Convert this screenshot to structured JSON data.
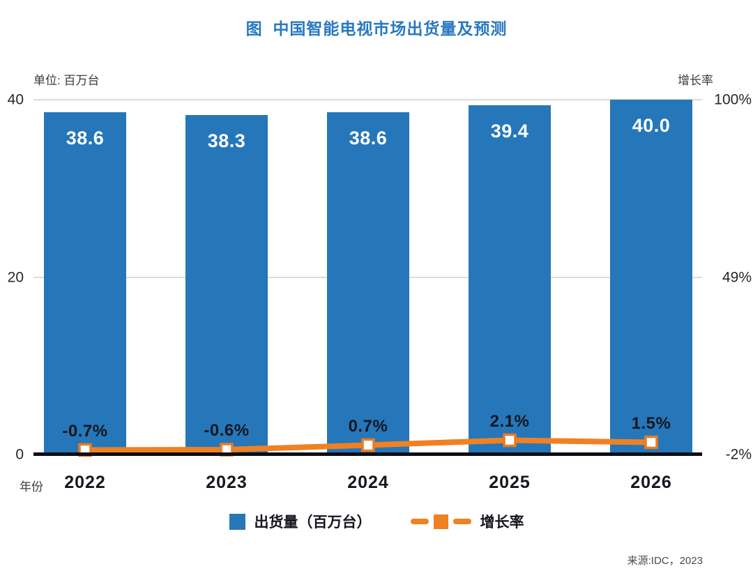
{
  "title": "图  中国智能电视市场出货量及预测",
  "source": "来源:IDC，2023",
  "legend": {
    "shipments": "出货量（百万台）",
    "growth": "增长率"
  },
  "chart_data": {
    "type": "combo",
    "title": "图 中国智能电视市场出货量及预测",
    "categories": [
      "2022",
      "2023",
      "2024",
      "2025",
      "2026"
    ],
    "x_title": "年份",
    "series": [
      {
        "name": "出货量（百万台）",
        "type": "bar",
        "values": [
          38.6,
          38.3,
          38.6,
          39.4,
          40.0
        ],
        "labels": [
          "38.6",
          "38.3",
          "38.6",
          "39.4",
          "40.0"
        ],
        "color": "#2577B9"
      },
      {
        "name": "增长率",
        "type": "line",
        "values": [
          -0.7,
          -0.6,
          0.7,
          2.1,
          1.5
        ],
        "labels": [
          "-0.7%",
          "-0.6%",
          "0.7%",
          "2.1%",
          "1.5%"
        ],
        "color": "#F08122"
      }
    ],
    "left_axis": {
      "unit": "单位: 百万台",
      "ticks": [
        "40",
        "20",
        "0"
      ],
      "min": 0,
      "max": 40
    },
    "right_axis": {
      "title": "增长率",
      "ticks": [
        "100%",
        "49%",
        "-2%"
      ],
      "min": -2,
      "max": 100
    },
    "grid": "horizontal",
    "legend_position": "bottom"
  },
  "colors": {
    "bar": "#2577B9",
    "line": "#F08122",
    "marker_fill": "#ffffff",
    "marker_stroke": "#ED7A1C",
    "title": "#2878BE",
    "axis_line": "#0D0D16",
    "gridline": "#DCDCDC"
  }
}
